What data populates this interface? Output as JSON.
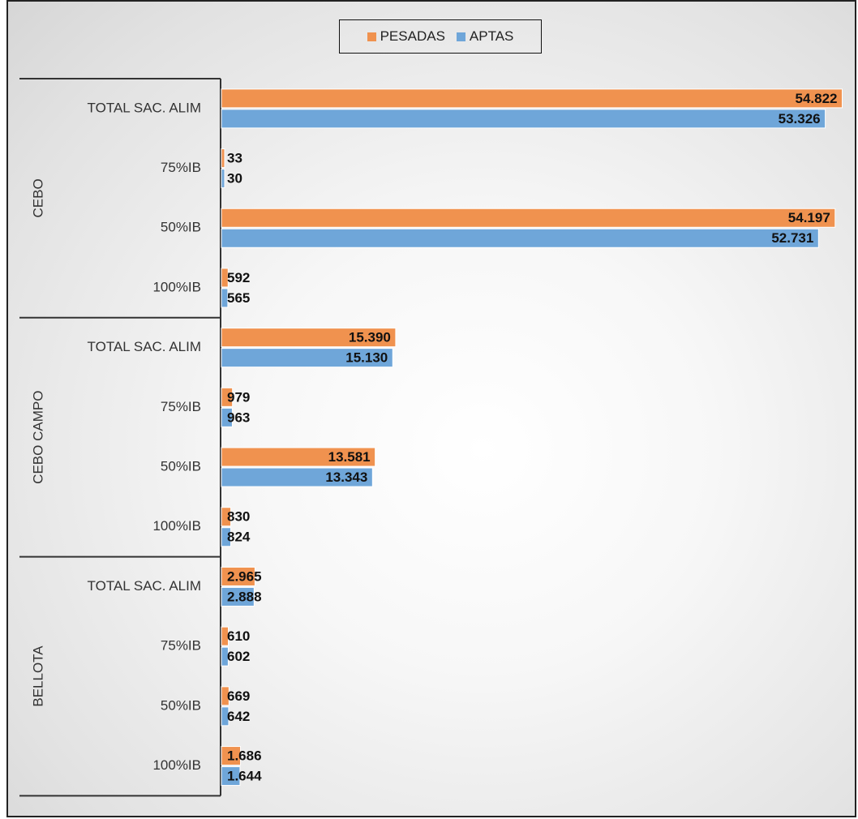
{
  "chart_data": {
    "type": "bar",
    "orientation": "horizontal",
    "legend_position": "top",
    "grid": false,
    "xlim": [
      0,
      55000
    ],
    "colors": {
      "PESADAS": "#f0924f",
      "APTAS": "#6fa6d9"
    },
    "groups": [
      {
        "name": "CEBO",
        "categories": [
          "TOTAL SAC. ALIM",
          "75%IB",
          "50%IB",
          "100%IB"
        ]
      },
      {
        "name": "CEBO CAMPO",
        "categories": [
          "TOTAL SAC. ALIM",
          "75%IB",
          "50%IB",
          "100%IB"
        ]
      },
      {
        "name": "BELLOTA",
        "categories": [
          "TOTAL SAC. ALIM",
          "75%IB",
          "50%IB",
          "100%IB"
        ]
      }
    ],
    "series": [
      {
        "name": "PESADAS",
        "values": [
          54822,
          33,
          54197,
          592,
          15390,
          979,
          13581,
          830,
          2965,
          610,
          669,
          1686
        ],
        "labels": [
          "54.822",
          "33",
          "54.197",
          "592",
          "15.390",
          "979",
          "13.581",
          "830",
          "2.965",
          "610",
          "669",
          "1.686"
        ]
      },
      {
        "name": "APTAS",
        "values": [
          53326,
          30,
          52731,
          565,
          15130,
          963,
          13343,
          824,
          2888,
          602,
          642,
          1644
        ],
        "labels": [
          "53.326",
          "30",
          "52.731",
          "565",
          "15.130",
          "963",
          "13.343",
          "824",
          "2.888",
          "602",
          "642",
          "1.644"
        ]
      }
    ]
  }
}
